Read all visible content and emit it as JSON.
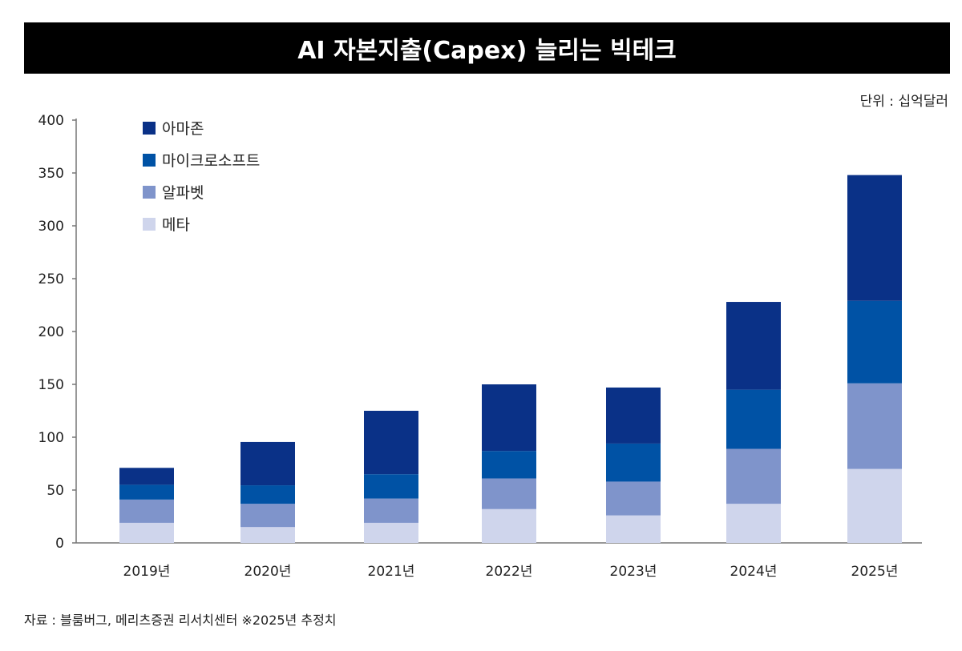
{
  "chart_data": {
    "type": "bar",
    "stacked": true,
    "title": "AI 자본지출(Capex) 늘리는 빅테크",
    "unit": "단위 : 십억달러",
    "source": "자료 : 블룸버그, 메리츠증권 리서치센터 ※2025년 추정치",
    "categories": [
      "2019년",
      "2020년",
      "2021년",
      "2022년",
      "2023년",
      "2024년",
      "2025년"
    ],
    "ylim": [
      0,
      400
    ],
    "yticks": [
      0,
      50,
      100,
      150,
      200,
      250,
      300,
      350,
      400
    ],
    "grid": false,
    "legend_position": "top-left",
    "series": [
      {
        "name": "메타",
        "color": "#cfd5ec",
        "values": [
          19,
          15,
          19,
          32,
          26,
          37,
          70
        ]
      },
      {
        "name": "알파벳",
        "color": "#7f94cb",
        "values": [
          22,
          22,
          23,
          29,
          32,
          52,
          81
        ]
      },
      {
        "name": "마이크로소프트",
        "color": "#0052a5",
        "values": [
          14,
          17.5,
          23,
          26,
          36,
          56,
          78
        ]
      },
      {
        "name": "아마존",
        "color": "#0a3187",
        "values": [
          16,
          41,
          60,
          63,
          53,
          83,
          119
        ]
      }
    ]
  }
}
